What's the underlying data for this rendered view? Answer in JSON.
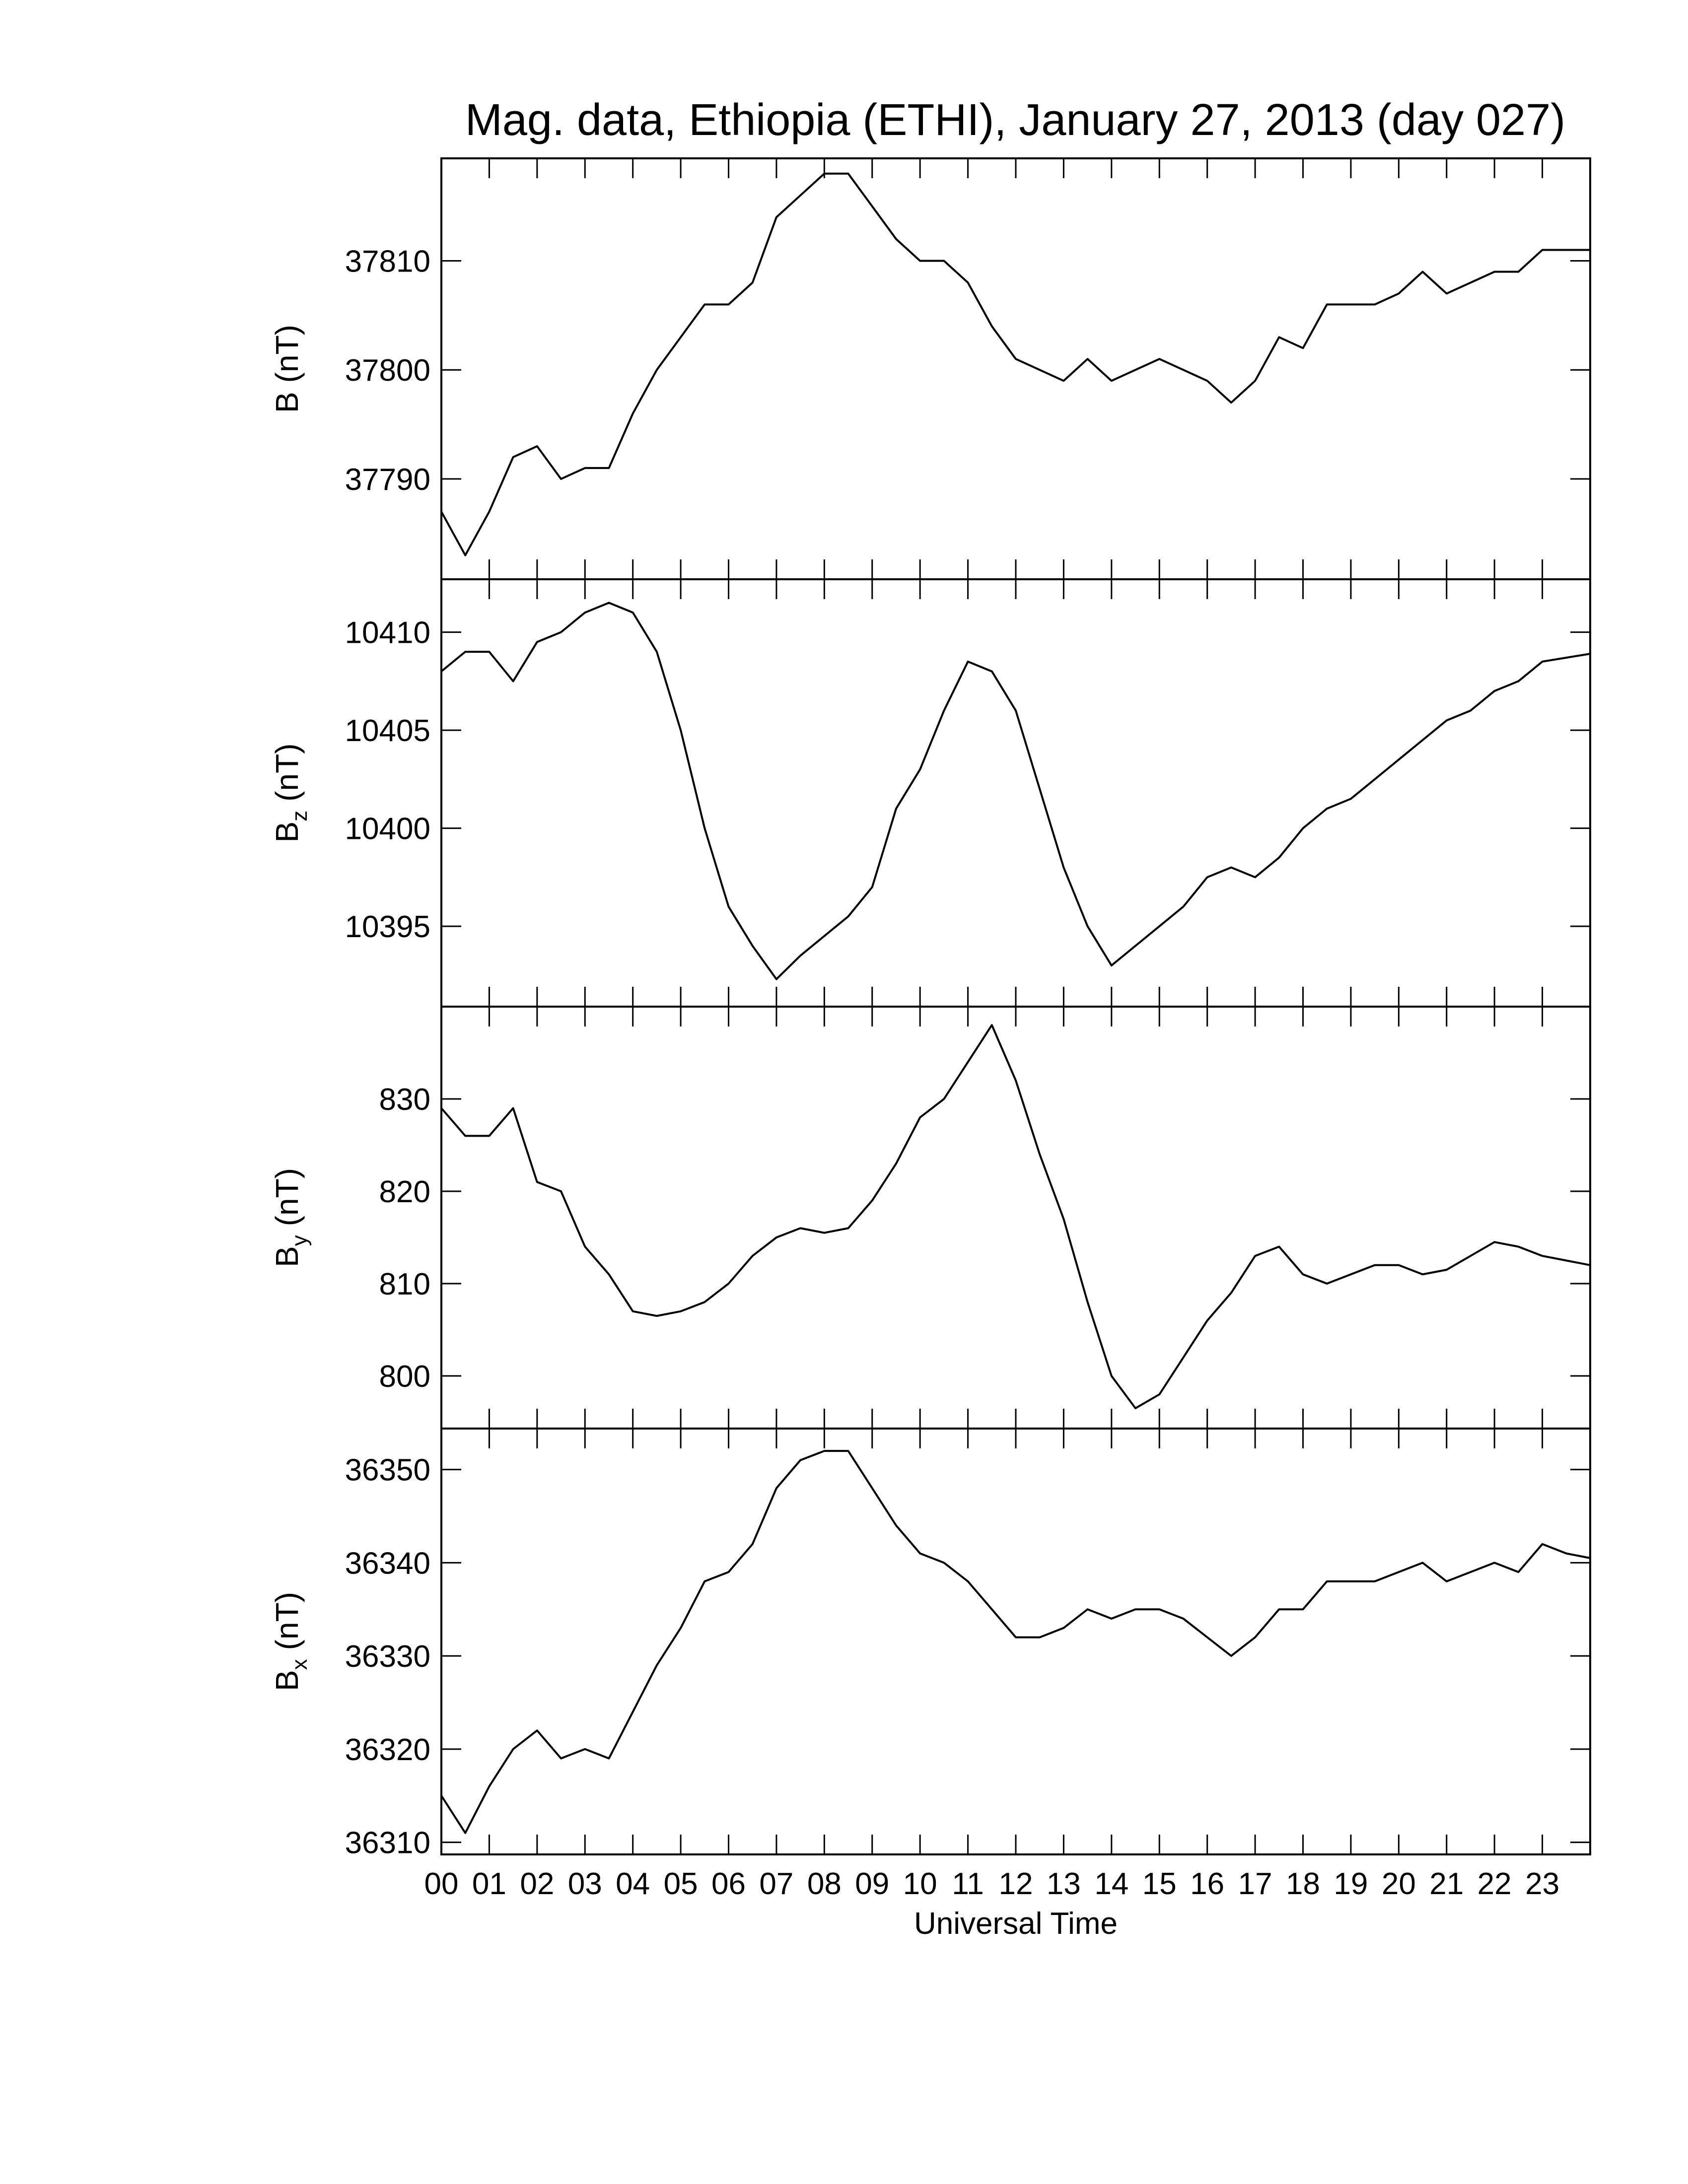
{
  "chart_data": [
    {
      "type": "line",
      "title": "Mag. data, Ethiopia (ETHI), January 27, 2013 (day 027)",
      "y_label": "B",
      "y_label_unit": "(nT)",
      "xlim": [
        0,
        24
      ],
      "ylim": [
        37780.8,
        37819.4
      ],
      "yticks": [
        37790,
        37800,
        37810
      ],
      "color": "#000000",
      "x": [
        0,
        0.5,
        1,
        1.5,
        2,
        2.5,
        3,
        3.5,
        4,
        4.5,
        5,
        5.5,
        6,
        6.5,
        7,
        7.5,
        8,
        8.5,
        9,
        9.5,
        10,
        10.5,
        11,
        11.5,
        12,
        12.5,
        13,
        13.5,
        14,
        14.5,
        15,
        15.5,
        16,
        16.5,
        17,
        17.5,
        18,
        18.5,
        19,
        19.5,
        20,
        20.5,
        21,
        21.5,
        22,
        22.5,
        23,
        23.5,
        24
      ],
      "values": [
        37787,
        37783,
        37787,
        37792,
        37793,
        37790,
        37791,
        37791,
        37796,
        37800,
        37803,
        37806,
        37806,
        37808,
        37814,
        37816,
        37818,
        37818,
        37815,
        37812,
        37810,
        37810,
        37808,
        37804,
        37801,
        37800,
        37799,
        37801,
        37799,
        37800,
        37801,
        37800,
        37799,
        37797,
        37799,
        37803,
        37802,
        37806,
        37806,
        37806,
        37807,
        37809,
        37807,
        37808,
        37809,
        37809,
        37811,
        37811,
        37811
      ]
    },
    {
      "type": "line",
      "y_label": "B",
      "y_label_subscript": "z",
      "y_label_unit": "(nT)",
      "xlim": [
        0,
        24
      ],
      "ylim": [
        10390.9,
        10412.7
      ],
      "yticks": [
        10395,
        10400,
        10405,
        10410
      ],
      "color": "#000000",
      "x": [
        0,
        0.5,
        1,
        1.5,
        2,
        2.5,
        3,
        3.5,
        4,
        4.5,
        5,
        5.5,
        6,
        6.5,
        7,
        7.5,
        8,
        8.5,
        9,
        9.5,
        10,
        10.5,
        11,
        11.5,
        12,
        12.5,
        13,
        13.5,
        14,
        14.5,
        15,
        15.5,
        16,
        16.5,
        17,
        17.5,
        18,
        18.5,
        19,
        19.5,
        20,
        20.5,
        21,
        21.5,
        22,
        22.5,
        23,
        23.5,
        24
      ],
      "values": [
        10408,
        10409,
        10409,
        10407.5,
        10409.5,
        10410,
        10411,
        10411.5,
        10411,
        10409,
        10405,
        10400,
        10396,
        10394,
        10392.3,
        10393.5,
        10394.5,
        10395.5,
        10397,
        10401,
        10403,
        10406,
        10408.5,
        10408,
        10406,
        10402,
        10398,
        10395,
        10393,
        10394,
        10395,
        10396,
        10397.5,
        10398,
        10397.5,
        10398.5,
        10400,
        10401,
        10401.5,
        10402.5,
        10403.5,
        10404.5,
        10405.5,
        10406,
        10407,
        10407.5,
        10408.5,
        10408.7,
        10408.9
      ]
    },
    {
      "type": "line",
      "y_label": "B",
      "y_label_subscript": "y",
      "y_label_unit": "(nT)",
      "xlim": [
        0,
        24
      ],
      "ylim": [
        794.3,
        840
      ],
      "yticks": [
        800,
        810,
        820,
        830
      ],
      "color": "#000000",
      "x": [
        0,
        0.5,
        1,
        1.5,
        2,
        2.5,
        3,
        3.5,
        4,
        4.5,
        5,
        5.5,
        6,
        6.5,
        7,
        7.5,
        8,
        8.5,
        9,
        9.5,
        10,
        10.5,
        11,
        11.5,
        12,
        12.5,
        13,
        13.5,
        14,
        14.5,
        15,
        15.5,
        16,
        16.5,
        17,
        17.5,
        18,
        18.5,
        19,
        19.5,
        20,
        20.5,
        21,
        21.5,
        22,
        22.5,
        23,
        23.5,
        24
      ],
      "values": [
        829,
        826,
        826,
        829,
        821,
        820,
        814,
        811,
        807,
        806.5,
        807,
        808,
        810,
        813,
        815,
        816,
        815.5,
        816,
        819,
        823,
        828,
        830,
        834,
        838,
        832,
        824,
        817,
        808,
        800,
        796.5,
        798,
        802,
        806,
        809,
        813,
        814,
        811,
        810,
        811,
        812,
        812,
        811,
        811.5,
        813,
        814.5,
        814,
        813,
        812.5,
        812
      ]
    },
    {
      "type": "line",
      "y_label": "B",
      "y_label_subscript": "x",
      "y_label_unit": "(nT)",
      "x_label": "Universal Time",
      "xlim": [
        0,
        24
      ],
      "ylim": [
        36308.7,
        36354.4
      ],
      "yticks": [
        36310,
        36320,
        36330,
        36340,
        36350
      ],
      "color": "#000000",
      "xticks": [
        {
          "value": 0,
          "label": "00"
        },
        {
          "value": 1,
          "label": "01"
        },
        {
          "value": 2,
          "label": "02"
        },
        {
          "value": 3,
          "label": "03"
        },
        {
          "value": 4,
          "label": "04"
        },
        {
          "value": 5,
          "label": "05"
        },
        {
          "value": 6,
          "label": "06"
        },
        {
          "value": 7,
          "label": "07"
        },
        {
          "value": 8,
          "label": "08"
        },
        {
          "value": 9,
          "label": "09"
        },
        {
          "value": 10,
          "label": "10"
        },
        {
          "value": 11,
          "label": "11"
        },
        {
          "value": 12,
          "label": "12"
        },
        {
          "value": 13,
          "label": "13"
        },
        {
          "value": 14,
          "label": "14"
        },
        {
          "value": 15,
          "label": "15"
        },
        {
          "value": 16,
          "label": "16"
        },
        {
          "value": 17,
          "label": "17"
        },
        {
          "value": 18,
          "label": "18"
        },
        {
          "value": 19,
          "label": "19"
        },
        {
          "value": 20,
          "label": "20"
        },
        {
          "value": 21,
          "label": "21"
        },
        {
          "value": 22,
          "label": "22"
        },
        {
          "value": 23,
          "label": "23"
        }
      ],
      "x": [
        0,
        0.5,
        1,
        1.5,
        2,
        2.5,
        3,
        3.5,
        4,
        4.5,
        5,
        5.5,
        6,
        6.5,
        7,
        7.5,
        8,
        8.5,
        9,
        9.5,
        10,
        10.5,
        11,
        11.5,
        12,
        12.5,
        13,
        13.5,
        14,
        14.5,
        15,
        15.5,
        16,
        16.5,
        17,
        17.5,
        18,
        18.5,
        19,
        19.5,
        20,
        20.5,
        21,
        21.5,
        22,
        22.5,
        23,
        23.5,
        24
      ],
      "values": [
        36315,
        36311,
        36316,
        36320,
        36322,
        36319,
        36320,
        36319,
        36324,
        36329,
        36333,
        36338,
        36339,
        36342,
        36348,
        36351,
        36352,
        36352,
        36348,
        36344,
        36341,
        36340,
        36338,
        36335,
        36332,
        36332,
        36333,
        36335,
        36334,
        36335,
        36335,
        36334,
        36332,
        36330,
        36332,
        36335,
        36335,
        36338,
        36338,
        36338,
        36339,
        36340,
        36338,
        36339,
        36340,
        36339,
        36342,
        36341,
        36340.5
      ]
    }
  ]
}
